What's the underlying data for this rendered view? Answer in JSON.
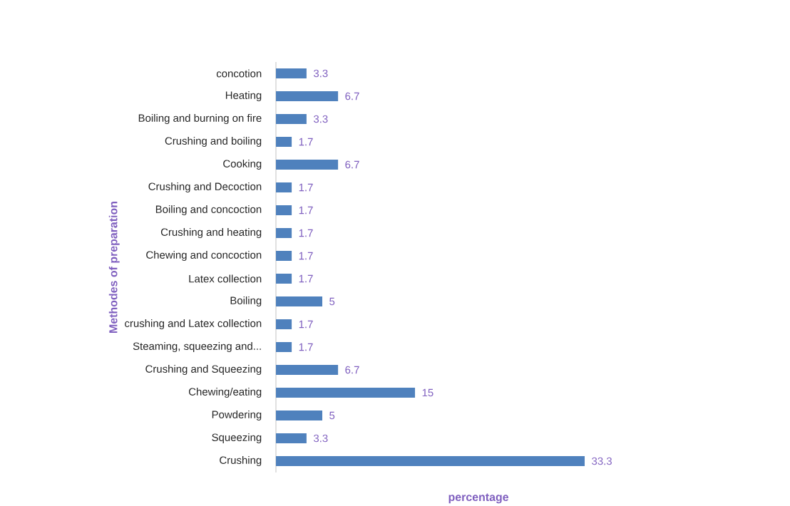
{
  "chart_data": {
    "type": "bar",
    "orientation": "horizontal",
    "xlabel": "percentage",
    "ylabel": "Methodes of preparation",
    "categories": [
      "concotion",
      "Heating",
      "Boiling  and burning on fire",
      "Crushing and boiling",
      "Cooking",
      "Crushing and Decoction",
      "Boiling and concoction",
      "Crushing and heating",
      "Chewing  and concoction",
      "Latex collection",
      "Boiling",
      "crushing and Latex collection",
      "Steaming, squeezing and...",
      "Crushing and Squeezing",
      "Chewing/eating",
      "Powdering",
      "Squeezing",
      "Crushing"
    ],
    "values": [
      3.3,
      6.7,
      3.3,
      1.7,
      6.7,
      1.7,
      1.7,
      1.7,
      1.7,
      1.7,
      5,
      1.7,
      1.7,
      6.7,
      15,
      5,
      3.3,
      33.3
    ],
    "color": "#4f81bd",
    "data_labels": true,
    "relative": false
  }
}
